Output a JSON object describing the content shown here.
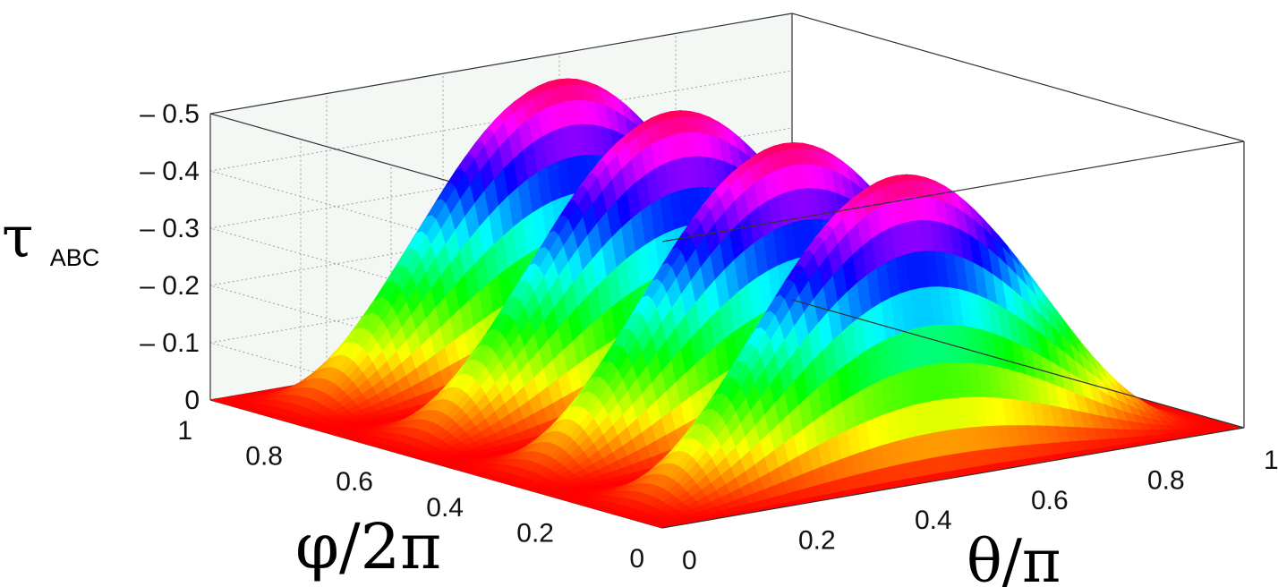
{
  "chart_data": {
    "type": "surface",
    "title": "",
    "xlabel": "θ/π",
    "ylabel": "φ/2π",
    "zlabel": "τ",
    "zlabel_subscript": "ABC",
    "xlim": [
      0,
      1
    ],
    "ylim": [
      0,
      1
    ],
    "zlim": [
      0,
      0.5
    ],
    "x_ticks": [
      "0",
      "0.2",
      "0.4",
      "0.6",
      "0.8",
      "1"
    ],
    "y_ticks": [
      "0",
      "0.2",
      "0.4",
      "0.6",
      "0.8",
      "1"
    ],
    "z_ticks": [
      "0",
      "0.1",
      "0.2",
      "0.3",
      "0.4",
      "0.5"
    ],
    "grid": true,
    "colormap": "hsv",
    "peaks": [
      {
        "theta": 0.5,
        "phi": 0.125,
        "tau": 0.5
      },
      {
        "theta": 0.5,
        "phi": 0.375,
        "tau": 0.5
      },
      {
        "theta": 0.5,
        "phi": 0.625,
        "tau": 0.5
      },
      {
        "theta": 0.5,
        "phi": 0.875,
        "tau": 0.5
      }
    ],
    "series": [
      {
        "formula": "tau = 0.5 * sin(theta*pi)^2 * sin(4*pi*phi)^2"
      }
    ]
  }
}
